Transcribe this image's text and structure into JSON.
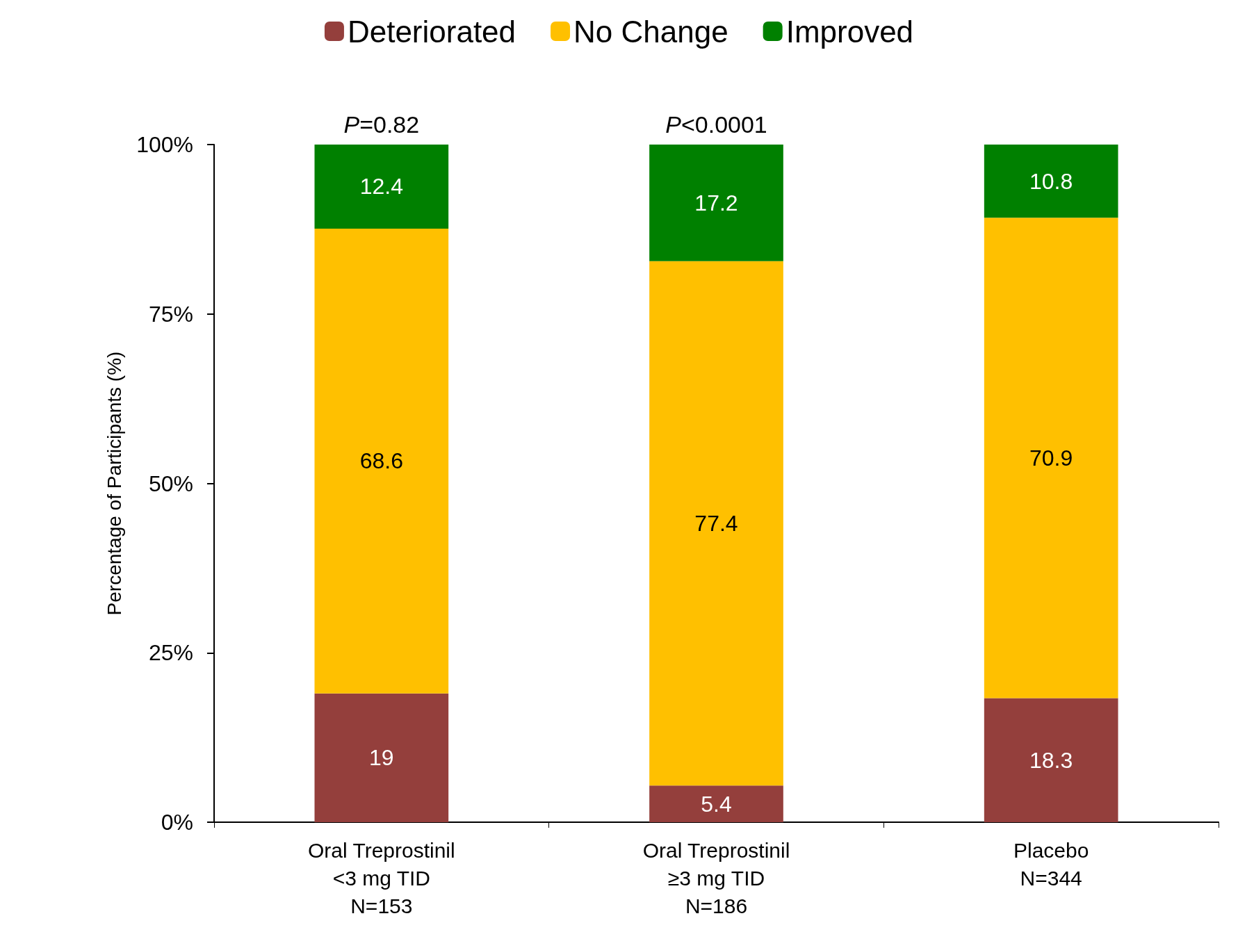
{
  "chart_data": {
    "type": "bar",
    "stacked": true,
    "ylabel": "Percentage of Participants (%)",
    "categories": [
      "Oral Treprostinil\n<3 mg TID\nN=153",
      "Oral Treprostinil\n≥3 mg TID\nN=186",
      "Placebo\nN=344"
    ],
    "series": [
      {
        "name": "Deteriorated",
        "color": "#943f3c",
        "values": [
          19,
          5.4,
          18.3
        ]
      },
      {
        "name": "No Change",
        "color": "#ffc000",
        "values": [
          68.6,
          77.4,
          70.9
        ]
      },
      {
        "name": "Improved",
        "color": "#008000",
        "values": [
          12.4,
          17.2,
          10.8
        ]
      }
    ],
    "ylim": [
      0,
      100
    ],
    "yticks": [
      {
        "value": 0,
        "label": "0%"
      },
      {
        "value": 25,
        "label": "25%"
      },
      {
        "value": 50,
        "label": "50%"
      },
      {
        "value": 75,
        "label": "75%"
      },
      {
        "value": 100,
        "label": "100%"
      }
    ],
    "data_labels": true,
    "legend": "top",
    "grid": false,
    "annotations": [
      {
        "text": "P=0.82",
        "x": "Oral Treprostinil\n<3 mg TID\nN=153",
        "y": 100
      },
      {
        "text": "P<0.0001",
        "x": "Oral Treprostinil\n≥3 mg TID\nN=186",
        "y": 100
      }
    ]
  }
}
